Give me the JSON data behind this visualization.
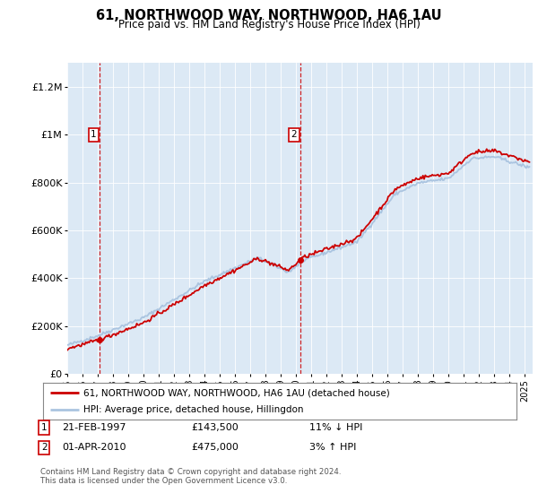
{
  "title": "61, NORTHWOOD WAY, NORTHWOOD, HA6 1AU",
  "subtitle": "Price paid vs. HM Land Registry's House Price Index (HPI)",
  "legend_entries": [
    "61, NORTHWOOD WAY, NORTHWOOD, HA6 1AU (detached house)",
    "HPI: Average price, detached house, Hillingdon"
  ],
  "ann1_x": 1997.13,
  "ann1_price": 143500,
  "ann2_x": 2010.25,
  "ann2_price": 475000,
  "footer": "Contains HM Land Registry data © Crown copyright and database right 2024.\nThis data is licensed under the Open Government Licence v3.0.",
  "hpi_line_color": "#aac4e0",
  "price_line_color": "#cc0000",
  "plot_bg": "#dce9f5",
  "ylim": [
    0,
    1300000
  ],
  "xmin": 1995,
  "xmax": 2025.5,
  "yticks": [
    0,
    200000,
    400000,
    600000,
    800000,
    1000000,
    1200000
  ],
  "ylabels": [
    "£0",
    "£200K",
    "£400K",
    "£600K",
    "£800K",
    "£1M",
    "£1.2M"
  ]
}
